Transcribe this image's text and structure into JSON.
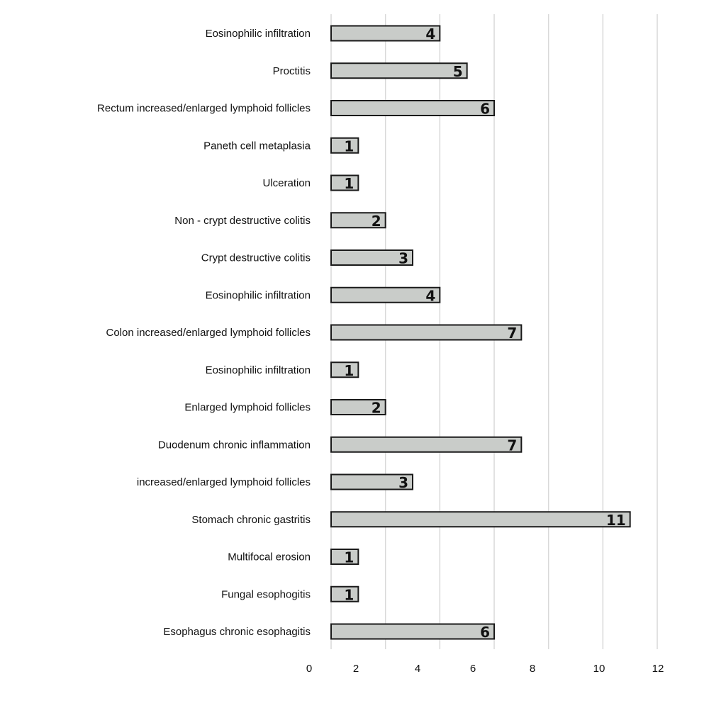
{
  "chart_data": {
    "type": "bar",
    "orientation": "horizontal",
    "categories": [
      "Eosinophilic infiltration",
      "Proctitis",
      "Rectum increased/enlarged lymphoid follicles",
      "Paneth cell metaplasia",
      "Ulceration",
      "Non - crypt destructive colitis",
      "Crypt destructive colitis",
      "Eosinophilic infiltration",
      "Colon increased/enlarged lymphoid follicles",
      "Eosinophilic infiltration",
      "Enlarged lymphoid follicles",
      "Duodenum chronic inflammation",
      "increased/enlarged lymphoid follicles",
      "Stomach chronic gastritis",
      "Multifocal erosion",
      "Fungal esophogitis",
      "Esophagus chronic esophagitis"
    ],
    "values": [
      4,
      5,
      6,
      1,
      1,
      2,
      3,
      4,
      7,
      1,
      2,
      7,
      3,
      11,
      1,
      1,
      6
    ],
    "data_labels": [
      "4",
      "5",
      "6",
      "1",
      "1",
      "2",
      "3",
      "4",
      "7",
      "1",
      "2",
      "7",
      "3",
      "11",
      "1",
      "1",
      "6"
    ],
    "x_ticks": [
      "0",
      "2",
      "4",
      "6",
      "8",
      "10",
      "12"
    ],
    "xlim": [
      0,
      12
    ],
    "xlabel": "",
    "ylabel": "",
    "title": "",
    "grid": "vertical",
    "legend": "none",
    "colors": {
      "bar_fill": "#c9ccc9",
      "bar_stroke": "#1a1a1a",
      "grid": "#d9d9d9",
      "text": "#111111"
    }
  }
}
